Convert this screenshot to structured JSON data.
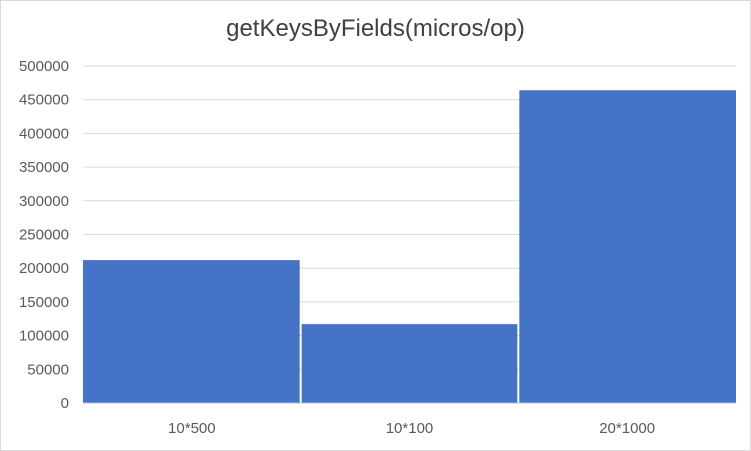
{
  "chart_data": {
    "type": "bar",
    "title": "getKeysByFields(micros/op)",
    "categories": [
      "10*500",
      "10*100",
      "20*1000"
    ],
    "values": [
      212000,
      117000,
      464000
    ],
    "xlabel": "",
    "ylabel": "",
    "ylim": [
      0,
      500000
    ],
    "yticks": [
      "0",
      "50000",
      "100000",
      "150000",
      "200000",
      "250000",
      "300000",
      "350000",
      "400000",
      "450000",
      "500000"
    ],
    "grid": true,
    "legend": "none",
    "colors": {
      "bar": "#4472c4",
      "grid": "#d9d9d9",
      "axis": "#bfbfbf",
      "text": "#595959",
      "title": "#404040"
    }
  }
}
